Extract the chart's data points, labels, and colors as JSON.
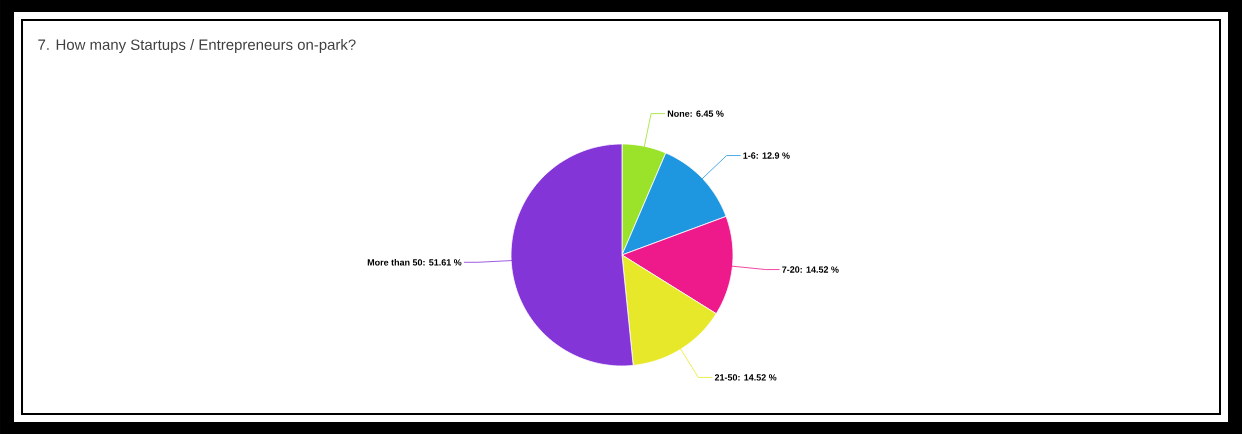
{
  "chart_data": {
    "type": "pie",
    "title": "7. How many Startups / Entrepreneurs on-park?",
    "categories": [
      "None",
      "1-6",
      "7-20",
      "21-50",
      "More than 50"
    ],
    "values": [
      6.45,
      12.9,
      14.52,
      14.52,
      51.61
    ],
    "value_labels": [
      ": 6.45 %",
      ": 12.9 %",
      ": 14.52 %",
      ": 14.52 %",
      ": 51.61 %"
    ],
    "colors": [
      "#9be22a",
      "#1e96e0",
      "#ee1a8c",
      "#e8e82a",
      "#8435d8"
    ]
  }
}
